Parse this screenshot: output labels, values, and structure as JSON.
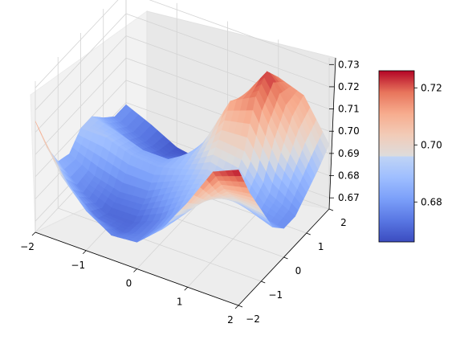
{
  "chart_data": {
    "type": "surface3d",
    "title": "",
    "xlabel": "",
    "ylabel": "",
    "zlabel": "",
    "colormap": "coolwarm",
    "x_ticks": [
      "−2",
      "−1",
      "0",
      "1",
      "2"
    ],
    "y_ticks": [
      "−2",
      "−1",
      "0",
      "1",
      "2"
    ],
    "z_ticks": [
      "0.67",
      "0.68",
      "0.69",
      "0.70",
      "0.71",
      "0.72",
      "0.73"
    ],
    "xlim": [
      -2,
      2
    ],
    "ylim": [
      -2,
      2
    ],
    "zlim": [
      0.665,
      0.733
    ],
    "colorbar": {
      "ticks": [
        "0.68",
        "0.70",
        "0.72"
      ],
      "range": [
        0.666,
        0.726
      ]
    },
    "grid": true,
    "x_grid": [
      -2,
      -1.5,
      -1,
      -0.5,
      0,
      0.5,
      1,
      1.5,
      2
    ],
    "y_grid": [
      -2,
      -1.5,
      -1,
      -0.5,
      0,
      0.5,
      1,
      1.5,
      2
    ],
    "z_grid": [
      [
        0.715,
        0.695,
        0.683,
        0.676,
        0.677,
        0.687,
        0.703,
        0.721,
        0.726
      ],
      [
        0.698,
        0.683,
        0.674,
        0.672,
        0.676,
        0.685,
        0.697,
        0.708,
        0.71
      ],
      [
        0.686,
        0.676,
        0.671,
        0.671,
        0.676,
        0.686,
        0.694,
        0.698,
        0.697
      ],
      [
        0.684,
        0.678,
        0.675,
        0.676,
        0.683,
        0.689,
        0.691,
        0.688,
        0.684
      ],
      [
        0.69,
        0.69,
        0.686,
        0.685,
        0.688,
        0.692,
        0.689,
        0.68,
        0.678
      ],
      [
        0.69,
        0.687,
        0.683,
        0.683,
        0.69,
        0.7,
        0.699,
        0.684,
        0.678
      ],
      [
        0.684,
        0.678,
        0.674,
        0.676,
        0.69,
        0.712,
        0.718,
        0.697,
        0.683
      ],
      [
        0.679,
        0.674,
        0.67,
        0.672,
        0.684,
        0.708,
        0.724,
        0.708,
        0.688
      ],
      [
        0.679,
        0.674,
        0.668,
        0.666,
        0.674,
        0.695,
        0.716,
        0.712,
        0.694
      ]
    ]
  }
}
